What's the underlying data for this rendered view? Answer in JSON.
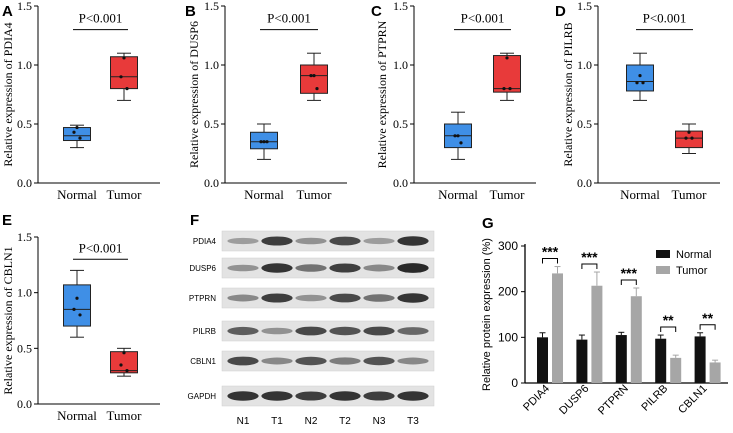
{
  "chart_data": [
    {
      "panel": "A",
      "type": "box",
      "ylabel": "Relative expression of PDIA4",
      "ylim": [
        0,
        1.5
      ],
      "yticks": [
        "0.0",
        "0.5",
        "1.0",
        "1.5"
      ],
      "pvalue": "P<0.001",
      "groups": [
        {
          "name": "Normal",
          "color": "#3f8fe6",
          "min": 0.3,
          "q1": 0.36,
          "median": 0.4,
          "q3": 0.47,
          "max": 0.49,
          "points": [
            0.47,
            0.43,
            0.38
          ]
        },
        {
          "name": "Tumor",
          "color": "#e83a3a",
          "min": 0.7,
          "q1": 0.8,
          "median": 0.9,
          "q3": 1.07,
          "max": 1.1,
          "points": [
            1.06,
            0.9,
            0.8
          ]
        }
      ]
    },
    {
      "panel": "B",
      "type": "box",
      "ylabel": "Relative expression of DUSP6",
      "ylim": [
        0,
        1.5
      ],
      "yticks": [
        "0.0",
        "0.5",
        "1.0",
        "1.5"
      ],
      "pvalue": "P<0.001",
      "groups": [
        {
          "name": "Normal",
          "color": "#3f8fe6",
          "min": 0.2,
          "q1": 0.29,
          "median": 0.35,
          "q3": 0.43,
          "max": 0.5,
          "points": [
            0.35,
            0.35,
            0.35
          ]
        },
        {
          "name": "Tumor",
          "color": "#e83a3a",
          "min": 0.7,
          "q1": 0.76,
          "median": 0.91,
          "q3": 1.0,
          "max": 1.1,
          "points": [
            0.91,
            0.91,
            0.8
          ]
        }
      ]
    },
    {
      "panel": "C",
      "type": "box",
      "ylabel": "Relative expression of PTPRN",
      "ylim": [
        0,
        1.5
      ],
      "yticks": [
        "0.0",
        "0.5",
        "1.0",
        "1.5"
      ],
      "pvalue": "P<0.001",
      "groups": [
        {
          "name": "Normal",
          "color": "#3f8fe6",
          "min": 0.2,
          "q1": 0.3,
          "median": 0.4,
          "q3": 0.5,
          "max": 0.6,
          "points": [
            0.4,
            0.4,
            0.34
          ]
        },
        {
          "name": "Tumor",
          "color": "#e83a3a",
          "min": 0.7,
          "q1": 0.77,
          "median": 0.8,
          "q3": 1.08,
          "max": 1.1,
          "points": [
            1.06,
            0.8,
            0.8
          ]
        }
      ]
    },
    {
      "panel": "D",
      "type": "box",
      "ylabel": "Relative expression of PILRB",
      "ylim": [
        0,
        1.5
      ],
      "yticks": [
        "0.0",
        "0.5",
        "1.0",
        "1.5"
      ],
      "pvalue": "P<0.001",
      "groups": [
        {
          "name": "Normal",
          "color": "#3f8fe6",
          "min": 0.7,
          "q1": 0.78,
          "median": 0.86,
          "q3": 1.0,
          "max": 1.1,
          "points": [
            0.91,
            0.85,
            0.85
          ]
        },
        {
          "name": "Tumor",
          "color": "#e83a3a",
          "min": 0.25,
          "q1": 0.3,
          "median": 0.38,
          "q3": 0.44,
          "max": 0.5,
          "points": [
            0.43,
            0.38,
            0.38
          ]
        }
      ]
    },
    {
      "panel": "E",
      "type": "box",
      "ylabel": "Relative expression of CBLN1",
      "ylim": [
        0,
        1.5
      ],
      "yticks": [
        "0.0",
        "0.5",
        "1.0",
        "1.5"
      ],
      "pvalue": "P<0.001",
      "groups": [
        {
          "name": "Normal",
          "color": "#3f8fe6",
          "min": 0.6,
          "q1": 0.7,
          "median": 0.85,
          "q3": 1.07,
          "max": 1.2,
          "points": [
            0.95,
            0.85,
            0.8
          ]
        },
        {
          "name": "Tumor",
          "color": "#e83a3a",
          "min": 0.25,
          "q1": 0.28,
          "median": 0.3,
          "q3": 0.47,
          "max": 0.5,
          "points": [
            0.46,
            0.35,
            0.3
          ]
        }
      ]
    },
    {
      "panel": "G",
      "type": "bar",
      "ylabel": "Relative protein expression (%)",
      "ylim": [
        0,
        300
      ],
      "yticks": [
        "0",
        "100",
        "200",
        "300"
      ],
      "categories": [
        "PDIA4",
        "DUSP6",
        "PTPRN",
        "PILRB",
        "CBLN1"
      ],
      "significance": [
        "***",
        "***",
        "***",
        "**",
        "**"
      ],
      "series": [
        {
          "name": "Normal",
          "color": "#111111",
          "values": [
            100,
            95,
            105,
            97,
            102
          ],
          "errors": [
            10,
            10,
            6,
            8,
            8
          ]
        },
        {
          "name": "Tumor",
          "color": "#a6a6a6",
          "values": [
            240,
            213,
            190,
            55,
            45
          ],
          "errors": [
            15,
            30,
            18,
            6,
            5
          ]
        }
      ]
    }
  ],
  "blot": {
    "panel": "F",
    "proteins": [
      "PDIA4",
      "DUSP6",
      "PTPRN",
      "PILRB",
      "CBLN1",
      "GAPDH"
    ],
    "lanes": [
      "N1",
      "T1",
      "N2",
      "T2",
      "N3",
      "T3"
    ],
    "intensity": [
      [
        0.35,
        0.8,
        0.4,
        0.75,
        0.35,
        0.85
      ],
      [
        0.4,
        0.85,
        0.55,
        0.8,
        0.45,
        0.9
      ],
      [
        0.45,
        0.8,
        0.4,
        0.75,
        0.55,
        0.85
      ],
      [
        0.65,
        0.4,
        0.75,
        0.7,
        0.75,
        0.6
      ],
      [
        0.75,
        0.45,
        0.7,
        0.5,
        0.7,
        0.45
      ],
      [
        0.85,
        0.85,
        0.8,
        0.85,
        0.8,
        0.85
      ]
    ]
  }
}
